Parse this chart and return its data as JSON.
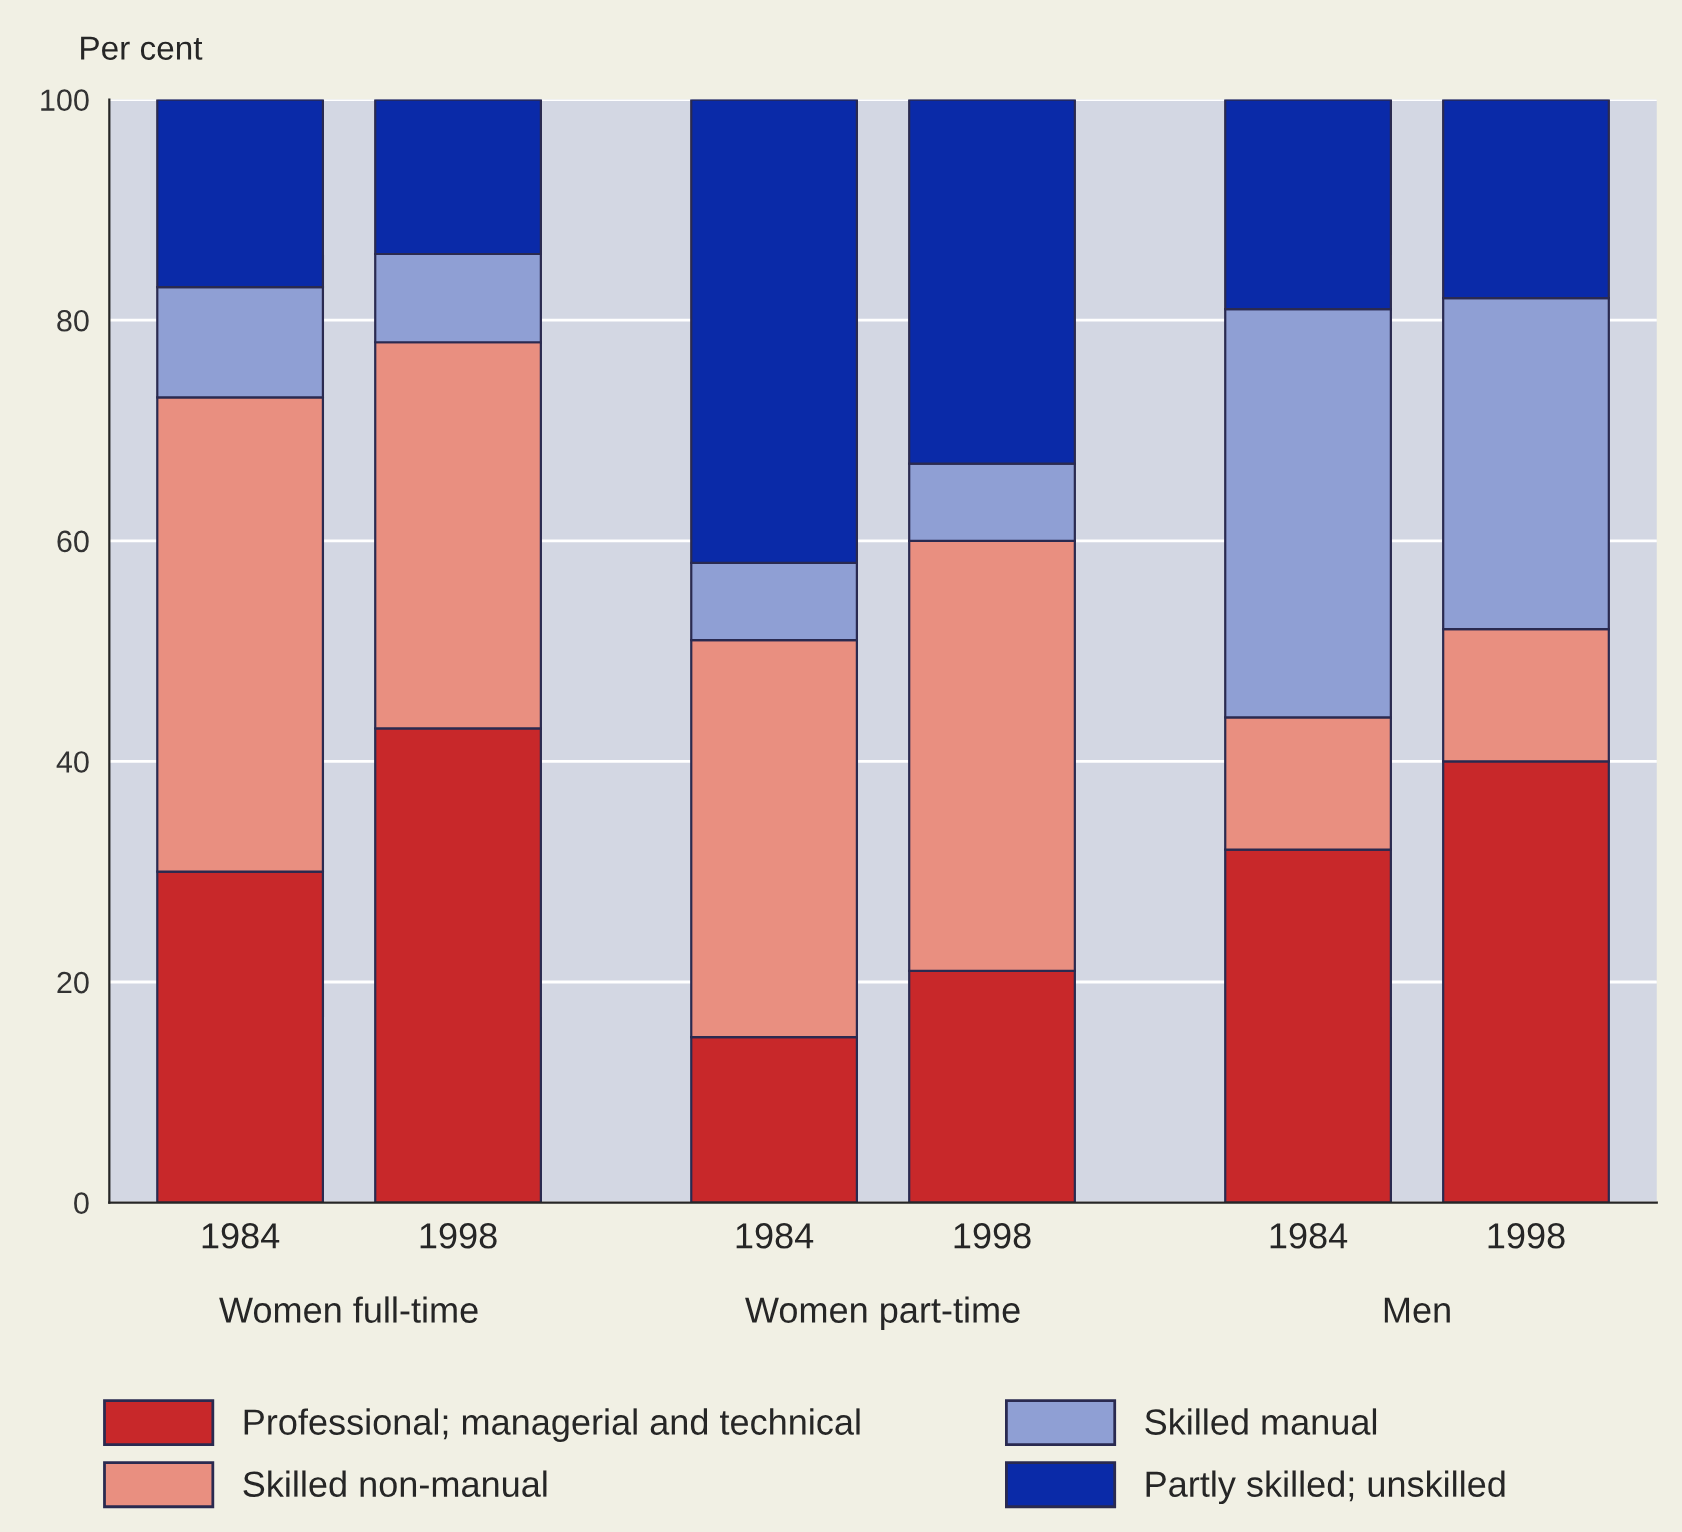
{
  "chart_data": {
    "type": "bar",
    "stacked": true,
    "ylabel": "Per cent",
    "categories": [
      "1984",
      "1998",
      "1984",
      "1998",
      "1984",
      "1998"
    ],
    "series": [
      {
        "name": "Professional; managerial and technical",
        "color": "#c8282a",
        "values": [
          30,
          43,
          15,
          21,
          32,
          40
        ]
      },
      {
        "name": "Skilled non-manual",
        "color": "#e98f80",
        "values": [
          43,
          35,
          36,
          39,
          12,
          12
        ]
      },
      {
        "name": "Skilled manual",
        "color": "#8f9fd4",
        "values": [
          10,
          8,
          7,
          7,
          37,
          30
        ]
      },
      {
        "name": "Partly skilled; unskilled",
        "color": "#0a2aa8",
        "values": [
          17,
          14,
          42,
          33,
          19,
          18
        ]
      }
    ],
    "annotations": [
      "Women full-time",
      "Women part-time",
      "Men"
    ],
    "ylim": [
      0,
      100
    ],
    "yticks": [
      0,
      20,
      40,
      60,
      80,
      100
    ],
    "grid": "y",
    "legend": "bottom"
  }
}
